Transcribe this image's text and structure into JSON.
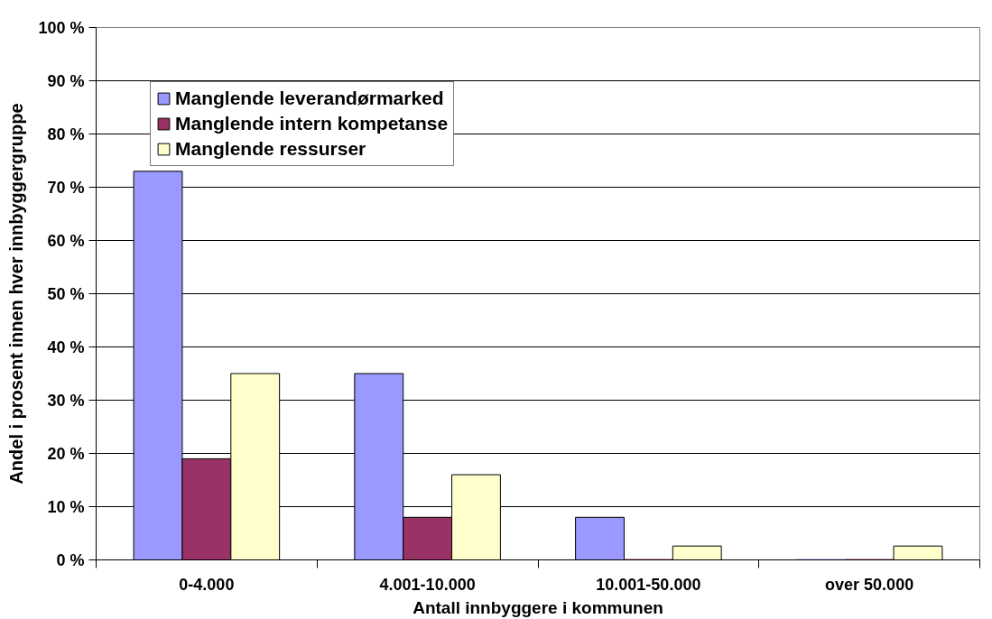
{
  "chart_data": {
    "type": "bar",
    "xlabel": "Antall innbyggere i kommunen",
    "ylabel": "Andel i prosent innen hver innbyggergruppe",
    "categories": [
      "0-4.000",
      "4.001-10.000",
      "10.001-50.000",
      "over 50.000"
    ],
    "series": [
      {
        "name": "Manglende leverandørmarked",
        "color": "#9999ff",
        "values": [
          73,
          35,
          8,
          0
        ]
      },
      {
        "name": "Manglende intern kompetanse",
        "color": "#993366",
        "values": [
          19,
          8,
          0,
          0
        ]
      },
      {
        "name": "Manglende ressurser",
        "color": "#ffffcc",
        "values": [
          35,
          16,
          2.6,
          2.6
        ]
      }
    ],
    "ylim": [
      0,
      100
    ],
    "yticks": [
      {
        "value": 0,
        "label": "0 %"
      },
      {
        "value": 10,
        "label": "10 %"
      },
      {
        "value": 20,
        "label": "20 %"
      },
      {
        "value": 30,
        "label": "30 %"
      },
      {
        "value": 40,
        "label": "40 %"
      },
      {
        "value": 50,
        "label": "50 %"
      },
      {
        "value": 60,
        "label": "60 %"
      },
      {
        "value": 70,
        "label": "70 %"
      },
      {
        "value": 80,
        "label": "80 %"
      },
      {
        "value": 90,
        "label": "90 %"
      },
      {
        "value": 100,
        "label": "100 %"
      }
    ],
    "grid": "y",
    "legend": "top left"
  }
}
